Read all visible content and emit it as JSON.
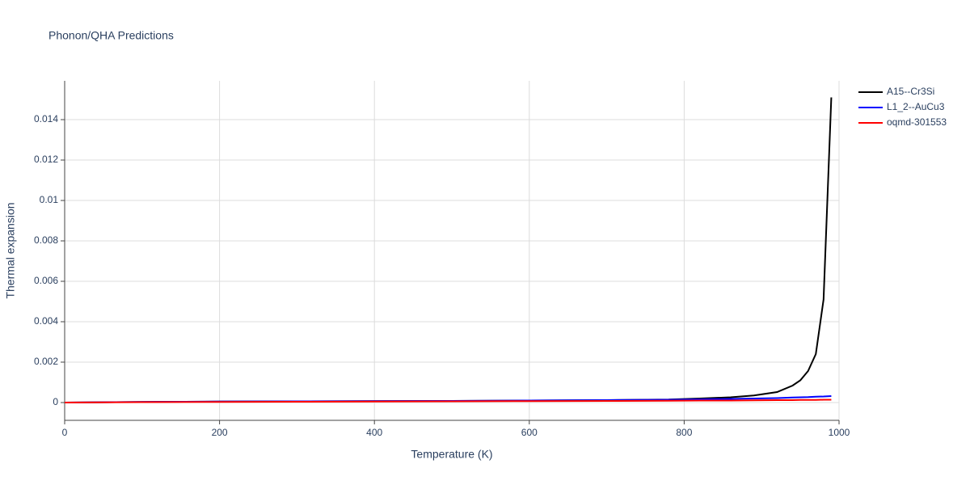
{
  "chart_data": {
    "type": "line",
    "title": "Phonon/QHA Predictions",
    "x_label": "Temperature (K)",
    "y_label": "Thermal expansion",
    "x": [
      0,
      100,
      200,
      300,
      400,
      500,
      600,
      700,
      780,
      820,
      860,
      890,
      920,
      940,
      950,
      960,
      970,
      980,
      990
    ],
    "series": [
      {
        "name": "A15--Cr3Si",
        "color": "#000000",
        "values": [
          0,
          3e-05,
          5e-05,
          6e-05,
          7e-05,
          8e-05,
          0.0001,
          0.00012,
          0.00015,
          0.0002,
          0.00026,
          0.00035,
          0.00052,
          0.00084,
          0.0011,
          0.00156,
          0.0024,
          0.0051,
          0.0151
        ]
      },
      {
        "name": "L1_2--AuCu3",
        "color": "#0000ff",
        "values": [
          0,
          3e-05,
          5e-05,
          6e-05,
          7e-05,
          8e-05,
          0.0001,
          0.00012,
          0.00014,
          0.00016,
          0.00018,
          0.0002,
          0.00022,
          0.00025,
          0.00026,
          0.00027,
          0.00029,
          0.0003,
          0.00032
        ]
      },
      {
        "name": "oqmd-301553",
        "color": "#ff0000",
        "values": [
          0,
          2e-05,
          3e-05,
          4e-05,
          5e-05,
          6e-05,
          7e-05,
          8e-05,
          9e-05,
          0.0001,
          0.0001,
          0.00011,
          0.00012,
          0.00012,
          0.00013,
          0.00013,
          0.00013,
          0.00014,
          0.00014
        ]
      }
    ],
    "xlim": [
      0,
      1000
    ],
    "xticks": [
      0,
      200,
      400,
      600,
      800,
      1000
    ],
    "ylim": [
      -0.00088,
      0.01592
    ],
    "yticks": [
      0,
      0.002,
      0.004,
      0.006,
      0.008,
      0.01,
      0.012,
      0.014
    ],
    "grid": true,
    "legend": "right"
  }
}
